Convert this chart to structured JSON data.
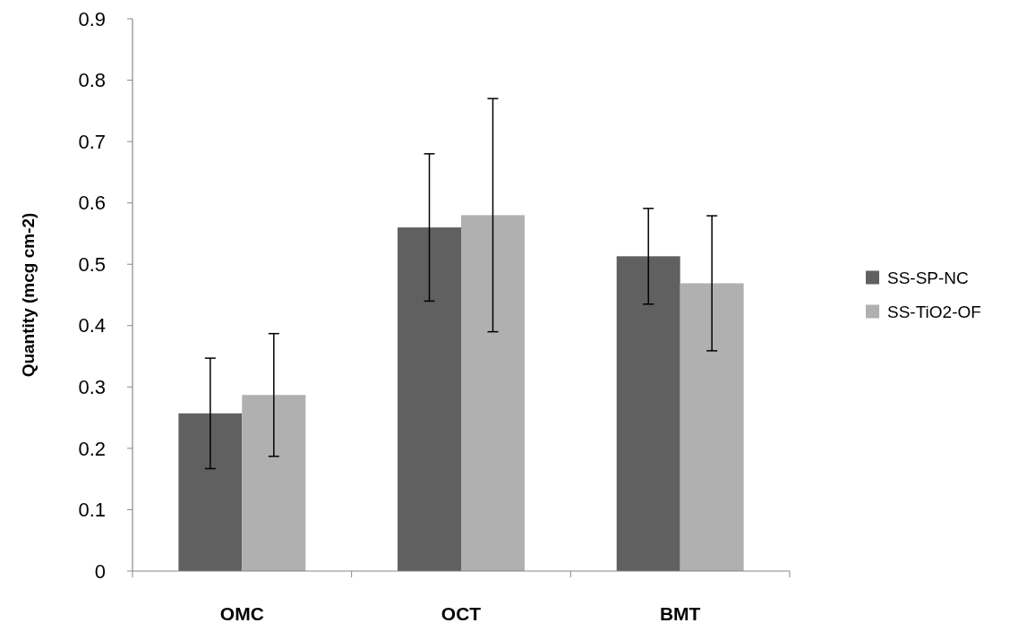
{
  "chart_data": {
    "type": "bar",
    "ylabel": "Quantity (mcg cm-2)",
    "categories": [
      "OMC",
      "OCT",
      "BMT"
    ],
    "series": [
      {
        "name": "SS-SP-NC",
        "color": "#606060",
        "values": [
          0.257,
          0.56,
          0.513
        ],
        "errors": [
          0.09,
          0.12,
          0.078
        ]
      },
      {
        "name": "SS-TiO2-OF",
        "color": "#b0b0b0",
        "values": [
          0.287,
          0.58,
          0.469
        ],
        "errors": [
          0.1,
          0.19,
          0.11
        ]
      }
    ],
    "ylim": [
      0,
      0.9
    ],
    "yticks": [
      0,
      0.1,
      0.2,
      0.3,
      0.4,
      0.5,
      0.6,
      0.7,
      0.8,
      0.9
    ],
    "grid": false,
    "legend": "right"
  }
}
